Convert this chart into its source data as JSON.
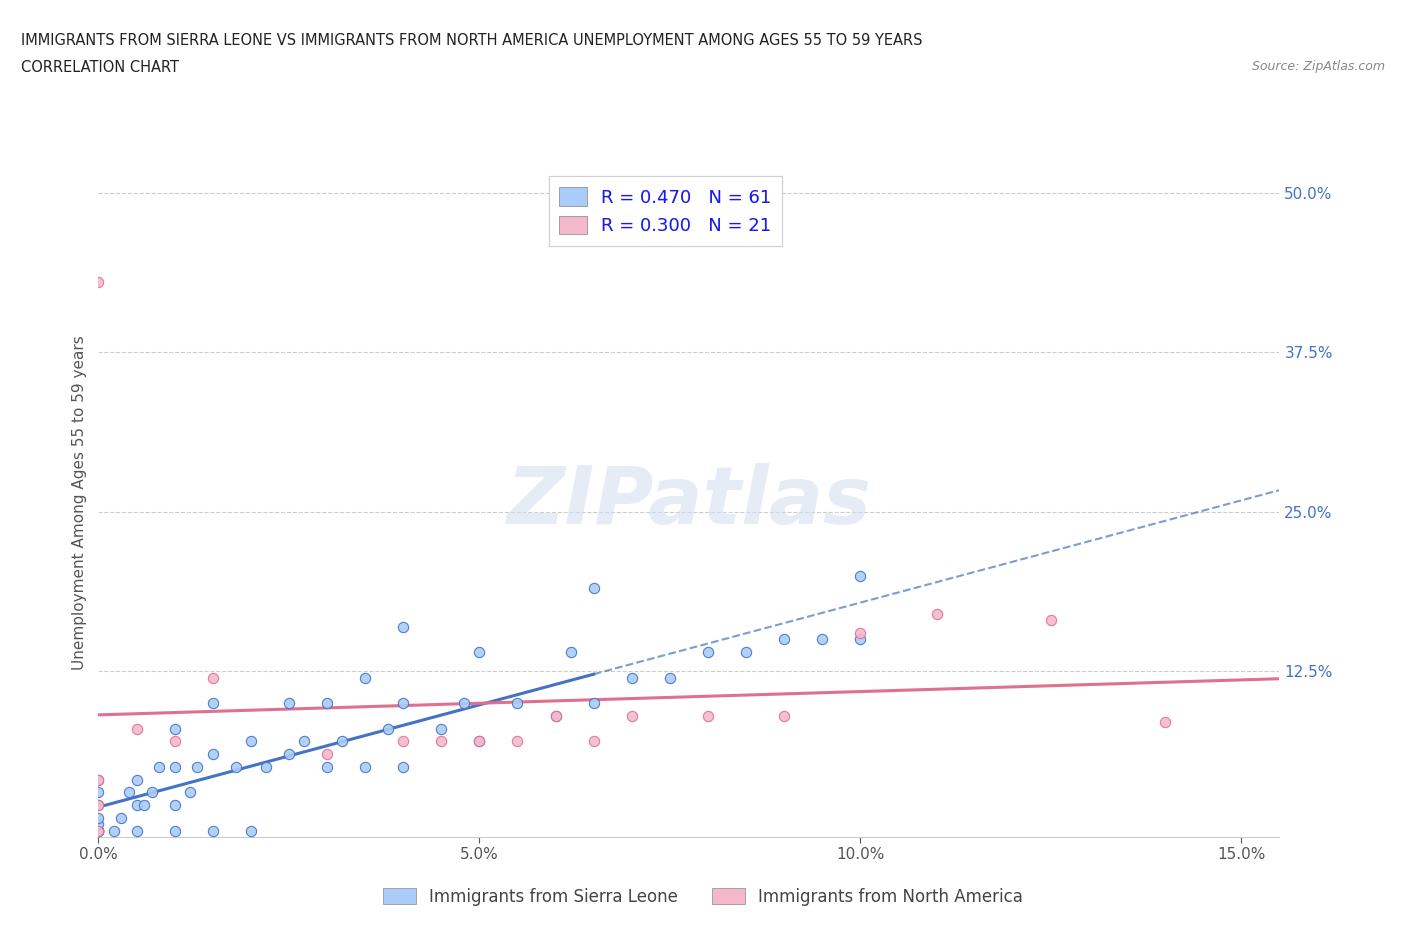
{
  "title_line1": "IMMIGRANTS FROM SIERRA LEONE VS IMMIGRANTS FROM NORTH AMERICA UNEMPLOYMENT AMONG AGES 55 TO 59 YEARS",
  "title_line2": "CORRELATION CHART",
  "source_text": "Source: ZipAtlas.com",
  "ylabel": "Unemployment Among Ages 55 to 59 years",
  "watermark": "ZIPatlas",
  "legend_label1": "Immigrants from Sierra Leone",
  "legend_label2": "Immigrants from North America",
  "R1": 0.47,
  "N1": 61,
  "R2": 0.3,
  "N2": 21,
  "color1": "#aaccf8",
  "color2": "#f5b8cb",
  "color1_line": "#4472c4",
  "color2_line": "#e07090",
  "xlim": [
    0.0,
    0.155
  ],
  "ylim": [
    -0.005,
    0.52
  ],
  "xticks": [
    0.0,
    0.05,
    0.1,
    0.15
  ],
  "xtick_labels": [
    "0.0%",
    "5.0%",
    "10.0%",
    "15.0%"
  ],
  "ytick_positions": [
    0.0,
    0.125,
    0.25,
    0.375,
    0.5
  ],
  "ytick_labels_left": [
    "",
    "",
    "",
    "",
    ""
  ],
  "ytick_labels_right": [
    "",
    "12.5%",
    "25.0%",
    "37.5%",
    "50.0%"
  ],
  "sierra_leone_x": [
    0.0,
    0.0,
    0.0,
    0.0,
    0.0,
    0.0,
    0.0,
    0.0,
    0.0,
    0.0,
    0.002,
    0.003,
    0.004,
    0.005,
    0.005,
    0.005,
    0.006,
    0.007,
    0.008,
    0.01,
    0.01,
    0.01,
    0.01,
    0.012,
    0.013,
    0.015,
    0.015,
    0.015,
    0.018,
    0.02,
    0.02,
    0.022,
    0.025,
    0.025,
    0.027,
    0.03,
    0.03,
    0.032,
    0.035,
    0.035,
    0.038,
    0.04,
    0.04,
    0.04,
    0.045,
    0.048,
    0.05,
    0.05,
    0.055,
    0.06,
    0.062,
    0.065,
    0.065,
    0.07,
    0.075,
    0.08,
    0.085,
    0.09,
    0.095,
    0.1,
    0.1
  ],
  "sierra_leone_y": [
    0.0,
    0.0,
    0.0,
    0.0,
    0.0,
    0.005,
    0.01,
    0.02,
    0.03,
    0.04,
    0.0,
    0.01,
    0.03,
    0.0,
    0.02,
    0.04,
    0.02,
    0.03,
    0.05,
    0.0,
    0.02,
    0.05,
    0.08,
    0.03,
    0.05,
    0.0,
    0.06,
    0.1,
    0.05,
    0.0,
    0.07,
    0.05,
    0.06,
    0.1,
    0.07,
    0.05,
    0.1,
    0.07,
    0.05,
    0.12,
    0.08,
    0.05,
    0.1,
    0.16,
    0.08,
    0.1,
    0.07,
    0.14,
    0.1,
    0.09,
    0.14,
    0.1,
    0.19,
    0.12,
    0.12,
    0.14,
    0.14,
    0.15,
    0.15,
    0.15,
    0.2
  ],
  "north_america_x": [
    0.0,
    0.0,
    0.0,
    0.0,
    0.005,
    0.01,
    0.015,
    0.03,
    0.04,
    0.045,
    0.05,
    0.055,
    0.06,
    0.065,
    0.07,
    0.08,
    0.09,
    0.1,
    0.11,
    0.125,
    0.14
  ],
  "north_america_y": [
    0.0,
    0.02,
    0.04,
    0.43,
    0.08,
    0.07,
    0.12,
    0.06,
    0.07,
    0.07,
    0.07,
    0.07,
    0.09,
    0.07,
    0.09,
    0.09,
    0.09,
    0.155,
    0.17,
    0.165,
    0.085
  ],
  "background_color": "#ffffff",
  "grid_color": "#cccccc"
}
